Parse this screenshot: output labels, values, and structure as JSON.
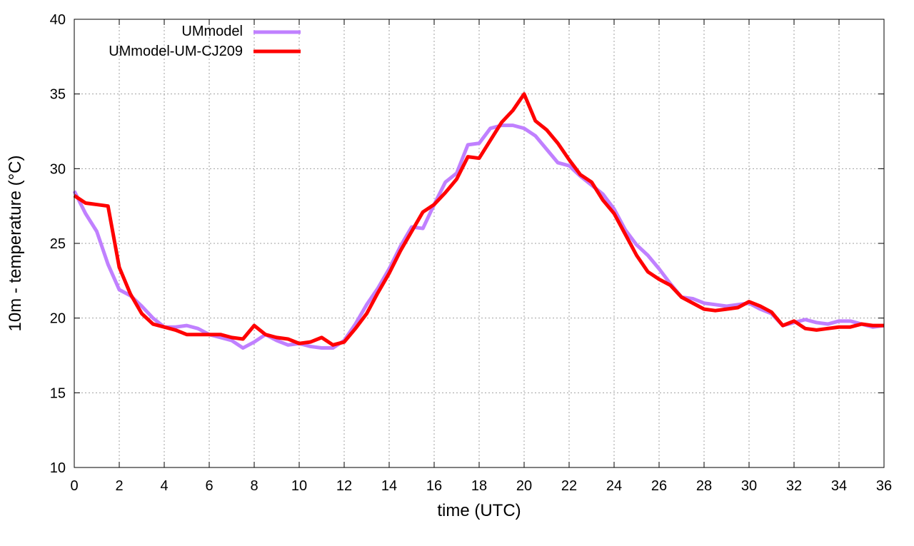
{
  "chart_data": {
    "type": "line",
    "title": "",
    "xlabel": "time (UTC)",
    "ylabel": "10m - temperature (°C)",
    "xlim": [
      0,
      36
    ],
    "ylim": [
      10,
      40
    ],
    "xticks": [
      0,
      2,
      4,
      6,
      8,
      10,
      12,
      14,
      16,
      18,
      20,
      22,
      24,
      26,
      28,
      30,
      32,
      34,
      36
    ],
    "yticks": [
      10,
      15,
      20,
      25,
      30,
      35,
      40
    ],
    "grid": true,
    "legend_position": "top-left",
    "x": [
      0,
      0.5,
      1,
      1.5,
      2,
      2.5,
      3,
      3.5,
      4,
      4.5,
      5,
      5.5,
      6,
      6.5,
      7,
      7.5,
      8,
      8.5,
      9,
      9.5,
      10,
      10.5,
      11,
      11.5,
      12,
      12.5,
      13,
      13.5,
      14,
      14.5,
      15,
      15.5,
      16,
      16.5,
      17,
      17.5,
      18,
      18.5,
      19,
      19.5,
      20,
      20.5,
      21,
      21.5,
      22,
      22.5,
      23,
      23.5,
      24,
      24.5,
      25,
      25.5,
      26,
      26.5,
      27,
      27.5,
      28,
      28.5,
      29,
      29.5,
      30,
      30.5,
      31,
      31.5,
      32,
      32.5,
      33,
      33.5,
      34,
      34.5,
      35,
      35.5,
      36
    ],
    "series": [
      {
        "name": "UMmodel",
        "color": "#c080ff",
        "values": [
          28.5,
          27.0,
          25.8,
          23.6,
          21.9,
          21.5,
          20.8,
          20.0,
          19.4,
          19.4,
          19.5,
          19.3,
          18.9,
          18.7,
          18.5,
          18.0,
          18.4,
          18.9,
          18.5,
          18.2,
          18.3,
          18.1,
          18.0,
          18.0,
          18.5,
          19.6,
          20.9,
          22.0,
          23.3,
          24.8,
          26.1,
          26.0,
          27.6,
          29.1,
          29.7,
          31.6,
          31.7,
          32.7,
          32.9,
          32.9,
          32.7,
          32.2,
          31.3,
          30.4,
          30.2,
          29.5,
          28.9,
          28.3,
          27.3,
          25.9,
          24.9,
          24.2,
          23.3,
          22.3,
          21.4,
          21.3,
          21.0,
          20.9,
          20.8,
          20.9,
          21.0,
          20.6,
          20.3,
          19.5,
          19.7,
          19.9,
          19.7,
          19.6,
          19.8,
          19.8,
          19.6,
          19.4,
          19.5
        ]
      },
      {
        "name": "UMmodel-UM-CJ209",
        "color": "#ff0000",
        "values": [
          28.2,
          27.7,
          27.6,
          27.5,
          23.4,
          21.6,
          20.3,
          19.6,
          19.4,
          19.2,
          18.9,
          18.9,
          18.9,
          18.9,
          18.7,
          18.6,
          19.5,
          18.9,
          18.7,
          18.6,
          18.3,
          18.4,
          18.7,
          18.2,
          18.4,
          19.3,
          20.3,
          21.7,
          23.0,
          24.5,
          25.8,
          27.1,
          27.6,
          28.4,
          29.3,
          30.8,
          30.7,
          31.9,
          33.1,
          33.9,
          35.0,
          33.2,
          32.6,
          31.7,
          30.6,
          29.6,
          29.1,
          27.9,
          27.0,
          25.6,
          24.2,
          23.1,
          22.6,
          22.2,
          21.4,
          21.0,
          20.6,
          20.5,
          20.6,
          20.7,
          21.1,
          20.8,
          20.4,
          19.5,
          19.8,
          19.3,
          19.2,
          19.3,
          19.4,
          19.4,
          19.6,
          19.5,
          19.5
        ]
      }
    ]
  }
}
